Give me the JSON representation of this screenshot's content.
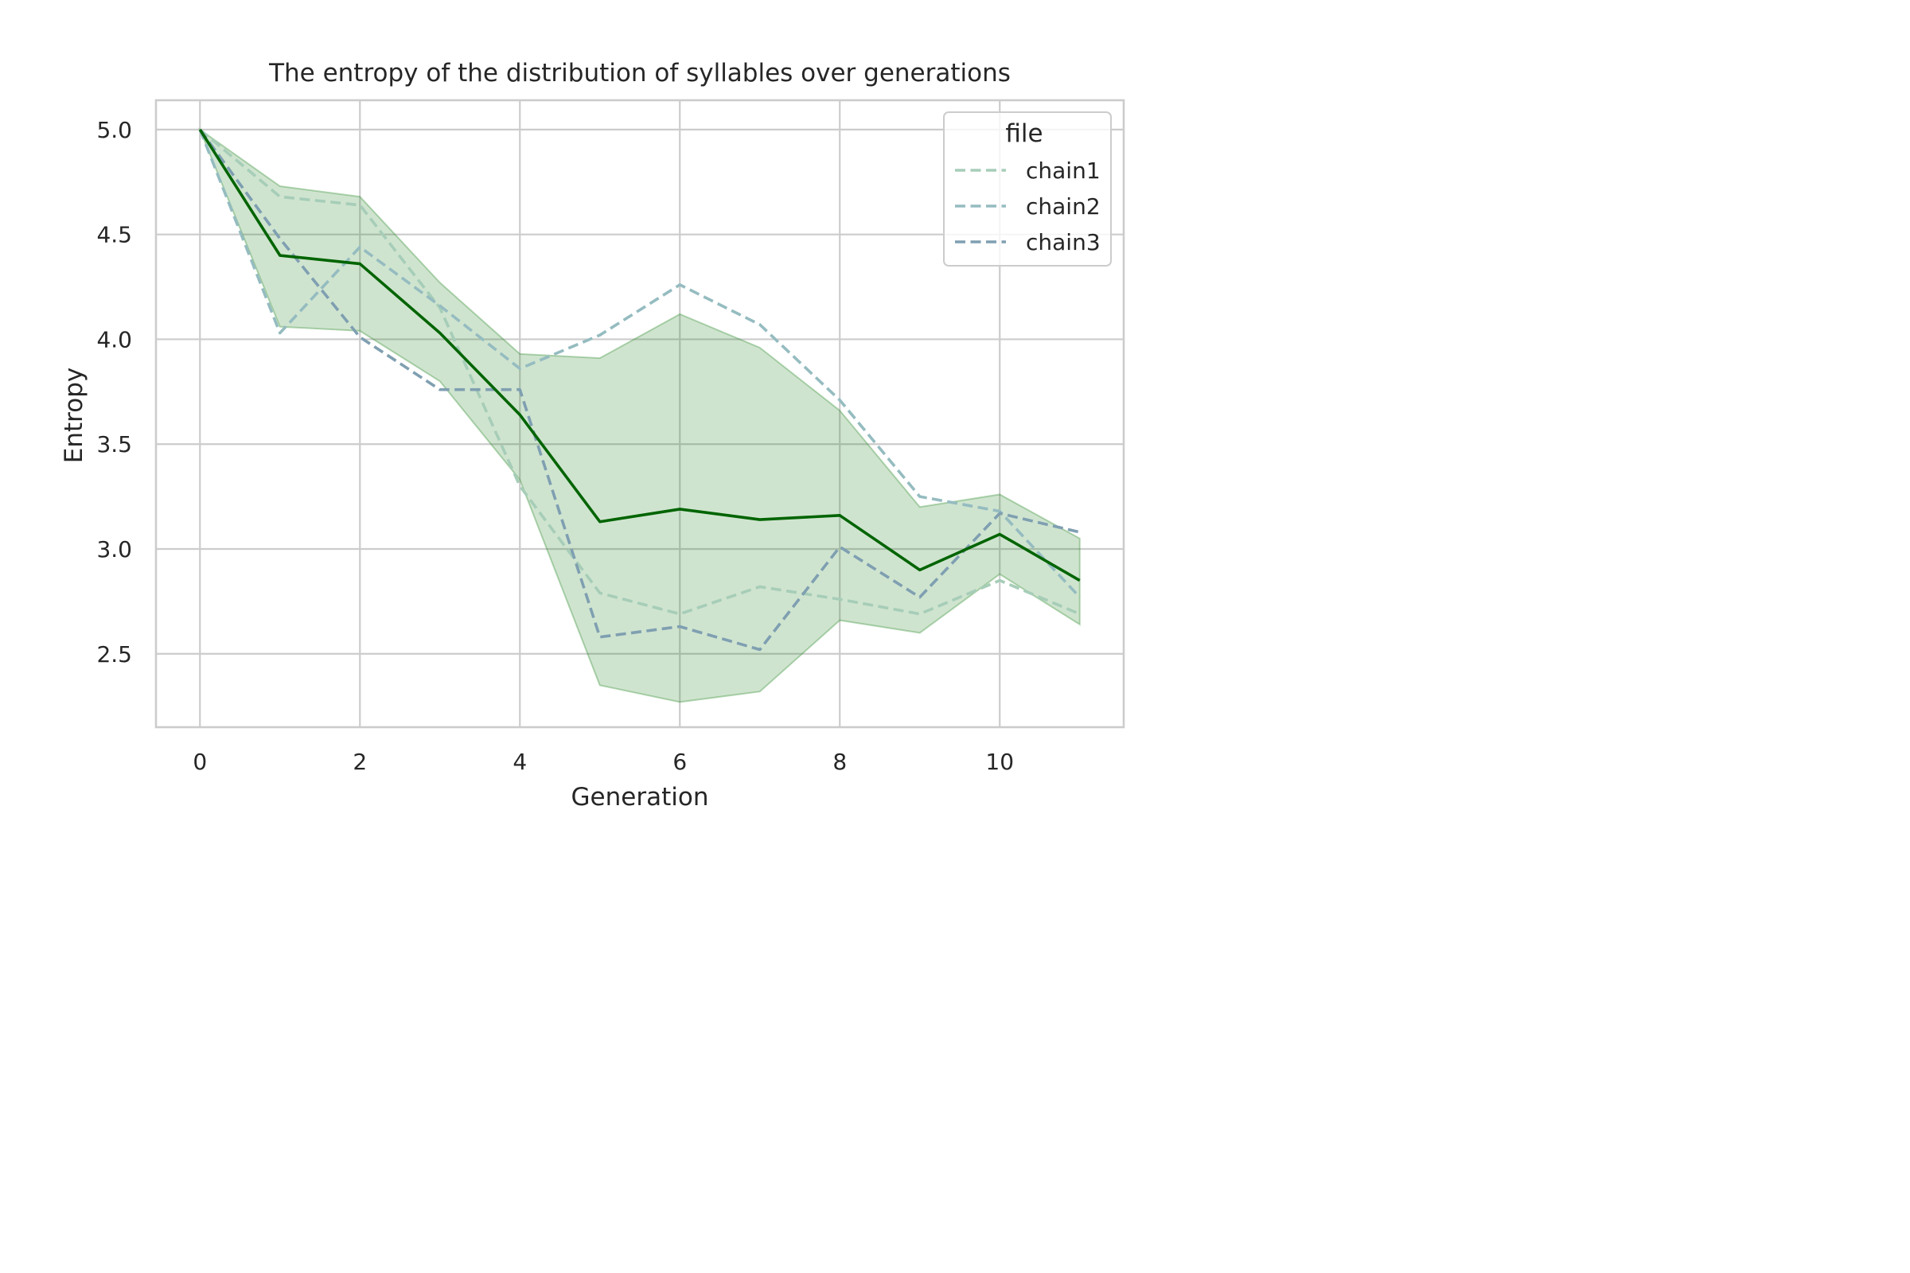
{
  "chart_data": {
    "type": "line",
    "title": "The entropy of the distribution of syllables over generations",
    "xlabel": "Generation",
    "ylabel": "Entropy",
    "xlim": [
      -0.55,
      11.55
    ],
    "ylim": [
      2.15,
      5.14
    ],
    "xticks": [
      0,
      2,
      4,
      6,
      8,
      10
    ],
    "xtick_labels": [
      "0",
      "2",
      "4",
      "6",
      "8",
      "10"
    ],
    "yticks": [
      2.5,
      3.0,
      3.5,
      4.0,
      4.5,
      5.0
    ],
    "ytick_labels": [
      "2.5",
      "3.0",
      "3.5",
      "4.0",
      "4.5",
      "5.0"
    ],
    "grid": true,
    "x": [
      0,
      1,
      2,
      3,
      4,
      5,
      6,
      7,
      8,
      9,
      10,
      11
    ],
    "legend": {
      "title": "file",
      "placement": "top-right"
    },
    "series": [
      {
        "name": "chain1",
        "color": "#a6cdb8",
        "style": "dashed",
        "values": [
          5.0,
          4.68,
          4.64,
          4.15,
          3.3,
          2.79,
          2.69,
          2.82,
          2.76,
          2.69,
          2.85,
          2.69
        ]
      },
      {
        "name": "chain2",
        "color": "#95bcc0",
        "style": "dashed",
        "values": [
          5.0,
          4.03,
          4.44,
          4.16,
          3.86,
          4.02,
          4.26,
          4.07,
          3.71,
          3.25,
          3.18,
          2.77
        ]
      },
      {
        "name": "chain3",
        "color": "#7f9fb1",
        "style": "dashed",
        "values": [
          5.0,
          4.48,
          4.01,
          3.76,
          3.76,
          2.58,
          2.63,
          2.52,
          3.01,
          2.77,
          3.17,
          3.08
        ]
      }
    ],
    "mean": {
      "color": "#006400",
      "style": "solid",
      "values": [
        5.0,
        4.4,
        4.36,
        4.03,
        3.64,
        3.13,
        3.19,
        3.14,
        3.16,
        2.9,
        3.07,
        2.85
      ]
    },
    "band": {
      "color": "#2e8b2e",
      "opacity": 0.23,
      "lower": [
        5.0,
        4.06,
        4.04,
        3.8,
        3.33,
        2.35,
        2.27,
        2.32,
        2.66,
        2.6,
        2.88,
        2.64
      ],
      "upper": [
        5.0,
        4.73,
        4.68,
        4.27,
        3.93,
        3.91,
        4.12,
        3.96,
        3.66,
        3.2,
        3.26,
        3.05
      ]
    }
  }
}
